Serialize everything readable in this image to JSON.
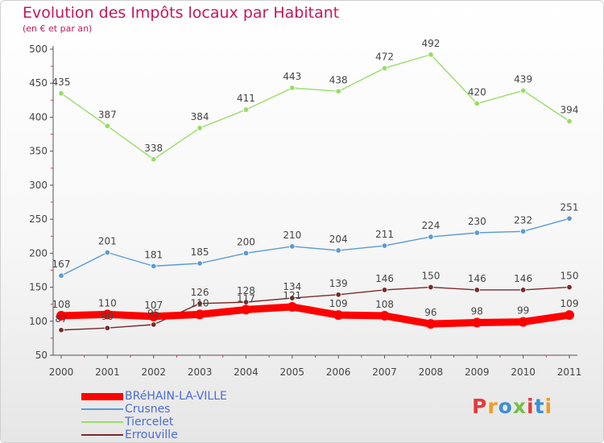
{
  "header": {
    "title": "Evolution des Impôts locaux par Habitant",
    "subtitle": "(en € et par an)"
  },
  "logo": {
    "text": "Proxiti"
  },
  "colors": {
    "title": "#c2185b",
    "legend_text": "#4a6cd4",
    "axis": "#555555"
  },
  "chart_data": {
    "type": "line",
    "title": "Evolution des Impôts locaux par Habitant",
    "subtitle": "(en € et par an)",
    "xlabel": "",
    "ylabel": "",
    "x": [
      "2000",
      "2001",
      "2002",
      "2003",
      "2004",
      "2005",
      "2006",
      "2007",
      "2008",
      "2009",
      "2010",
      "2011"
    ],
    "ylim": [
      50,
      500
    ],
    "yticks": [
      50,
      100,
      150,
      200,
      250,
      300,
      350,
      400,
      450,
      500
    ],
    "grid": false,
    "legend_position": "bottom-left",
    "series": [
      {
        "name": "BRéHAIN-LA-VILLE",
        "color": "#ff0000",
        "values": [
          108,
          110,
          107,
          110,
          117,
          121,
          109,
          108,
          96,
          98,
          99,
          109
        ],
        "labels": [
          "108",
          "110",
          "107",
          "110",
          "117",
          "121",
          "109",
          "108",
          "96",
          "98",
          "99",
          "109"
        ]
      },
      {
        "name": "Crusnes",
        "color": "#5b9bd5",
        "values": [
          167,
          201,
          181,
          185,
          200,
          210,
          204,
          211,
          224,
          230,
          232,
          251
        ],
        "labels": [
          "167",
          "201",
          "181",
          "185",
          "200",
          "210",
          "204",
          "211",
          "224",
          "230",
          "232",
          "251"
        ]
      },
      {
        "name": "Tiercelet",
        "color": "#99dd66",
        "values": [
          435,
          387,
          338,
          384,
          411,
          443,
          438,
          472,
          492,
          420,
          439,
          394
        ],
        "labels": [
          "435",
          "387",
          "338",
          "384",
          "411",
          "443",
          "438",
          "472",
          "492",
          "420",
          "439",
          "394"
        ]
      },
      {
        "name": "Errouville",
        "color": "#7a2a2a",
        "values": [
          87,
          90,
          95,
          126,
          128,
          134,
          139,
          146,
          150,
          146,
          146,
          150
        ],
        "labels": [
          "87",
          "90",
          "95",
          "126",
          "128",
          "134",
          "139",
          "146",
          "150",
          "146",
          "146",
          "150"
        ]
      }
    ]
  }
}
